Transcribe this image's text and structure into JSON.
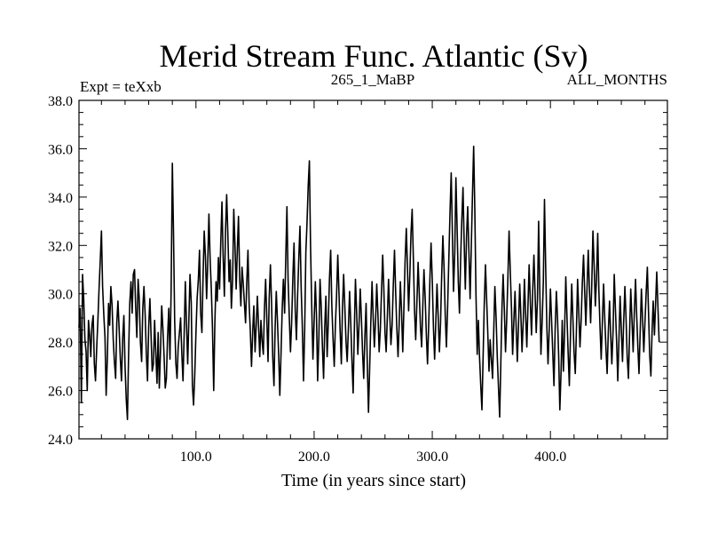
{
  "chart_data": {
    "type": "line",
    "title": "Merid Stream Func. Atlantic (Sv)",
    "subtitle_left": "Expt = teXxb",
    "subtitle_center": "265_1_MaBP",
    "subtitle_right": "ALL_MONTHS",
    "xlabel": "Time (in years since start)",
    "ylabel": "",
    "xlim": [
      1,
      499
    ],
    "ylim": [
      24.0,
      38.0
    ],
    "x_ticks": [
      100,
      200,
      300,
      400
    ],
    "x_tick_labels": [
      "100.0",
      "200.0",
      "300.0",
      "400.0"
    ],
    "y_ticks": [
      24,
      26,
      28,
      30,
      32,
      34,
      36,
      38
    ],
    "y_tick_labels": [
      "24.0",
      "26.0",
      "28.0",
      "30.0",
      "32.0",
      "34.0",
      "36.0",
      "38.0"
    ],
    "grid": false,
    "series": [
      {
        "name": "Merid Stream Func. Atlantic",
        "x_start": 1,
        "x_step": 1,
        "values": [
          28.6,
          29.4,
          25.5,
          30.8,
          29.8,
          28.1,
          27.6,
          26.0,
          28.9,
          28.3,
          27.4,
          28.7,
          29.1,
          27.1,
          26.4,
          27.8,
          28.9,
          30.2,
          31.4,
          32.6,
          30.3,
          29.1,
          28.2,
          25.8,
          27.4,
          29.6,
          28.7,
          30.3,
          29.5,
          28.1,
          27.2,
          26.5,
          28.8,
          29.7,
          28.5,
          27.3,
          26.4,
          28.2,
          29.1,
          27.0,
          25.6,
          24.8,
          27.5,
          29.6,
          30.5,
          29.2,
          30.8,
          31.0,
          29.4,
          28.2,
          30.6,
          29.8,
          28.0,
          27.2,
          29.4,
          30.3,
          29.1,
          27.5,
          26.4,
          28.6,
          29.8,
          28.3,
          26.8,
          27.1,
          28.9,
          27.6,
          26.3,
          28.4,
          26.1,
          27.7,
          29.5,
          28.6,
          27.4,
          26.1,
          26.5,
          28.2,
          29.4,
          27.3,
          30.1,
          35.4,
          32.5,
          28.9,
          27.1,
          26.5,
          27.8,
          28.4,
          29.0,
          27.6,
          26.4,
          28.3,
          30.5,
          28.7,
          27.1,
          28.9,
          30.8,
          29.6,
          26.2,
          25.4,
          26.7,
          28.4,
          29.8,
          30.6,
          31.8,
          29.2,
          28.4,
          30.7,
          32.6,
          31.5,
          29.8,
          31.3,
          33.3,
          31.4,
          30.2,
          28.6,
          26.0,
          28.8,
          30.5,
          29.7,
          31.5,
          30.2,
          32.2,
          33.8,
          31.6,
          29.9,
          32.6,
          34.1,
          32.5,
          30.5,
          31.4,
          29.4,
          30.6,
          33.5,
          32.1,
          30.2,
          31.8,
          33.2,
          30.6,
          29.5,
          31.1,
          30.4,
          29.6,
          28.8,
          30.4,
          31.8,
          29.6,
          28.5,
          27.0,
          28.4,
          29.5,
          27.6,
          28.7,
          29.9,
          28.6,
          27.4,
          28.9,
          28.0,
          27.5,
          29.4,
          30.6,
          28.9,
          27.2,
          29.8,
          31.2,
          29.6,
          27.4,
          26.2,
          28.6,
          30.1,
          28.8,
          27.5,
          25.8,
          27.6,
          29.4,
          30.6,
          29.2,
          31.5,
          33.6,
          30.6,
          29.0,
          27.6,
          28.8,
          30.7,
          32.1,
          29.4,
          28.1,
          29.9,
          31.4,
          32.8,
          30.3,
          28.7,
          26.4,
          28.5,
          31.7,
          32.9,
          34.5,
          35.5,
          32.0,
          29.4,
          27.3,
          28.8,
          30.5,
          29.1,
          26.4,
          28.2,
          30.6,
          29.5,
          27.8,
          26.5,
          28.6,
          29.9,
          27.4,
          28.8,
          30.6,
          31.8,
          29.5,
          28.2,
          27.0,
          28.7,
          29.9,
          31.6,
          30.1,
          28.5,
          27.1,
          29.4,
          30.8,
          29.5,
          28.0,
          27.2,
          28.5,
          30.1,
          28.8,
          27.3,
          25.9,
          28.4,
          30.6,
          29.2,
          27.5,
          28.7,
          30.2,
          29.0,
          27.6,
          26.5,
          28.3,
          29.6,
          27.2,
          25.1,
          26.9,
          28.8,
          30.5,
          29.0,
          27.8,
          28.9,
          30.4,
          29.2,
          27.6,
          28.5,
          30.0,
          31.6,
          30.2,
          28.4,
          27.6,
          29.1,
          30.6,
          29.2,
          27.9,
          28.7,
          30.3,
          31.8,
          30.1,
          28.6,
          27.4,
          28.8,
          30.5,
          29.2,
          27.6,
          29.4,
          31.3,
          32.7,
          31.1,
          29.3,
          30.8,
          32.5,
          33.5,
          31.4,
          29.3,
          28.1,
          29.7,
          31.3,
          30.0,
          28.6,
          27.8,
          29.5,
          31.0,
          29.8,
          28.3,
          27.1,
          28.8,
          30.6,
          32.1,
          30.5,
          28.6,
          27.3,
          28.9,
          30.4,
          29.1,
          27.6,
          28.8,
          30.8,
          32.4,
          31.0,
          29.1,
          27.8,
          29.5,
          31.4,
          33.3,
          35.0,
          32.6,
          30.1,
          31.7,
          34.8,
          32.8,
          30.5,
          29.2,
          31.4,
          33.0,
          34.4,
          32.1,
          30.2,
          32.4,
          33.6,
          31.8,
          29.8,
          31.9,
          34.0,
          36.1,
          33.5,
          30.0,
          27.5,
          28.9,
          27.4,
          26.2,
          25.2,
          27.3,
          29.5,
          31.2,
          29.8,
          28.4,
          26.8,
          28.1,
          27.3,
          26.5,
          28.4,
          30.3,
          29.0,
          27.4,
          26.2,
          24.9,
          27.1,
          29.4,
          30.8,
          29.3,
          27.6,
          28.9,
          30.7,
          32.6,
          31.0,
          29.4,
          27.5,
          28.8,
          30.1,
          28.6,
          27.2,
          28.8,
          30.4,
          29.1,
          27.6,
          28.9,
          30.6,
          29.2,
          27.8,
          29.5,
          31.2,
          29.6,
          28.3,
          30.1,
          31.6,
          30.0,
          28.4,
          29.8,
          33.0,
          30.2,
          27.5,
          28.9,
          30.5,
          33.9,
          31.0,
          28.6,
          27.1,
          28.6,
          30.2,
          28.9,
          27.5,
          26.2,
          28.5,
          30.1,
          29.0,
          27.4,
          25.2,
          26.8,
          28.9,
          26.8,
          28.5,
          30.7,
          29.1,
          27.5,
          26.2,
          28.3,
          30.4,
          29.0,
          27.6,
          26.7,
          28.5,
          30.6,
          29.2,
          27.8,
          28.9,
          30.4,
          31.6,
          30.1,
          28.7,
          30.3,
          31.8,
          30.2,
          28.8,
          30.4,
          32.6,
          31.1,
          29.5,
          30.6,
          32.5,
          30.1,
          28.6,
          27.3,
          28.9,
          30.4,
          29.0,
          27.7,
          26.7,
          28.4,
          29.7,
          28.3,
          27.1,
          28.5,
          30.8,
          29.4,
          28.0,
          26.4,
          28.1,
          29.9,
          28.5,
          27.2,
          28.8,
          30.3,
          29.0,
          27.4,
          26.5,
          28.4,
          30.2,
          28.9,
          27.6,
          29.2,
          30.6,
          29.1,
          27.8,
          26.7,
          28.5,
          30.2,
          29.0,
          27.6,
          28.8,
          30.0,
          31.1,
          29.3,
          27.5,
          26.6,
          28.4,
          29.7,
          28.3,
          29.6,
          30.9,
          29.5,
          28.0
        ]
      }
    ]
  }
}
